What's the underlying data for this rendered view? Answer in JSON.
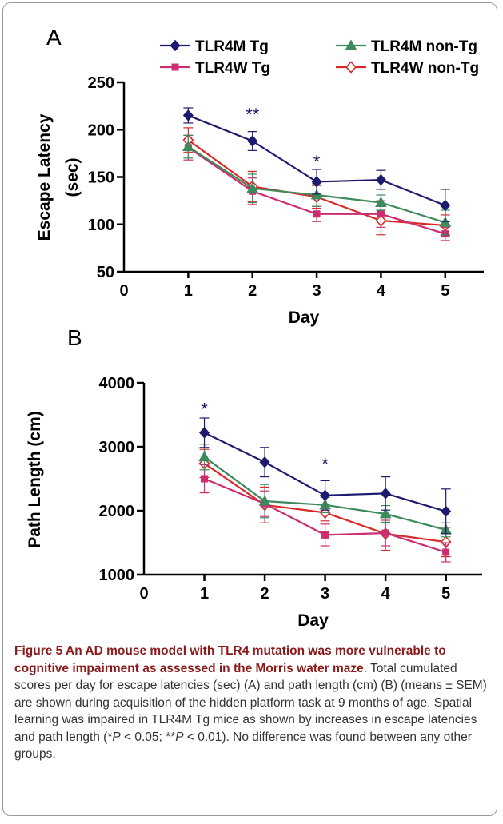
{
  "chart_data": [
    {
      "type": "line",
      "panel_label": "A",
      "xlabel": "Day",
      "ylabel_line1": "Escape Latency",
      "ylabel_line2": "(sec)",
      "x": [
        1,
        2,
        3,
        4,
        5
      ],
      "xlim": [
        0,
        5.6
      ],
      "ylim": [
        50,
        250
      ],
      "xticks": [
        0,
        1,
        2,
        3,
        4,
        5
      ],
      "yticks": [
        50,
        100,
        150,
        200,
        250
      ],
      "series": [
        {
          "name": "TLR4M Tg",
          "color": "#1e1a6e",
          "marker": "diamond-filled",
          "values": [
            215,
            188,
            145,
            147,
            120
          ],
          "errors": [
            8,
            10,
            13,
            10,
            17
          ]
        },
        {
          "name": "TLR4M non-Tg",
          "color": "#3d8a5a",
          "marker": "triangle-filled",
          "values": [
            182,
            138,
            131,
            123,
            102
          ],
          "errors": [
            12,
            15,
            12,
            8,
            13
          ]
        },
        {
          "name": "TLR4W Tg",
          "color": "#cc2d71",
          "marker": "square-filled",
          "values": [
            181,
            135,
            111,
            111,
            90
          ],
          "errors": [
            13,
            14,
            8,
            14,
            7
          ]
        },
        {
          "name": "TLR4W non-Tg",
          "color": "#d92a2a",
          "marker": "diamond-open",
          "values": [
            189,
            140,
            129,
            104,
            99
          ],
          "errors": [
            13,
            16,
            12,
            15,
            11
          ]
        }
      ],
      "annotations": [
        {
          "text": "**",
          "x": 2,
          "y": 218
        },
        {
          "text": "*",
          "x": 3,
          "y": 168
        }
      ],
      "legend_placement": "top"
    },
    {
      "type": "line",
      "panel_label": "B",
      "xlabel": "Day",
      "ylabel_line1": "Path Length (cm)",
      "x": [
        1,
        2,
        3,
        4,
        5
      ],
      "xlim": [
        0,
        5.6
      ],
      "ylim": [
        1000,
        4000
      ],
      "xticks": [
        0,
        1,
        2,
        3,
        4,
        5
      ],
      "yticks": [
        1000,
        2000,
        3000,
        4000
      ],
      "series": [
        {
          "name": "TLR4M Tg",
          "color": "#1e1a6e",
          "marker": "diamond-filled",
          "values": [
            3220,
            2760,
            2240,
            2270,
            1990
          ],
          "errors": [
            230,
            230,
            230,
            260,
            350
          ]
        },
        {
          "name": "TLR4M non-Tg",
          "color": "#3d8a5a",
          "marker": "triangle-filled",
          "values": [
            2840,
            2150,
            2090,
            1950,
            1700
          ],
          "errors": [
            200,
            260,
            120,
            130,
            110
          ]
        },
        {
          "name": "TLR4W Tg",
          "color": "#cc2d71",
          "marker": "square-filled",
          "values": [
            2500,
            2110,
            1620,
            1650,
            1350
          ],
          "errors": [
            220,
            200,
            170,
            200,
            150
          ]
        },
        {
          "name": "TLR4W non-Tg",
          "color": "#d92a2a",
          "marker": "diamond-open",
          "values": [
            2740,
            2090,
            1970,
            1640,
            1510
          ],
          "errors": [
            220,
            280,
            130,
            260,
            230
          ]
        }
      ],
      "annotations": [
        {
          "text": "*",
          "x": 1,
          "y": 3620
        },
        {
          "text": "*",
          "x": 3,
          "y": 2760
        }
      ]
    }
  ],
  "caption": {
    "bold": "Figure 5 An AD mouse model with TLR4 mutation was more vulnerable to cognitive impairment as assessed in the Morris water maze",
    "seg1": ". Total cumulated scores per day for escape latencies (sec) (A) and path length (cm) (B) (means ± SEM) are shown during acquisition of the hidden platform task at 9 months of age. Spatial learning was impaired in TLR4M Tg mice as shown by increases in escape latencies and path length (*",
    "p1": "P",
    "seg2": " < 0.05; **",
    "p2": "P",
    "seg3": " < 0.01). No difference was found between any other groups."
  }
}
